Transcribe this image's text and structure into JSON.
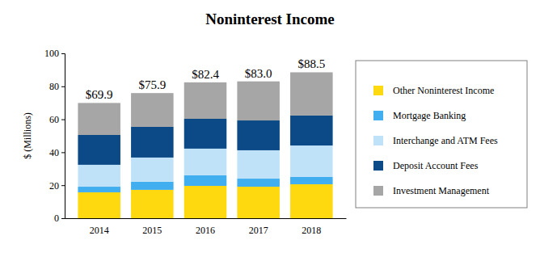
{
  "chart_data": {
    "type": "bar",
    "stacked": true,
    "title": "Noninterest Income",
    "y_label": "$ (Millions)",
    "categories": [
      "2014",
      "2015",
      "2016",
      "2017",
      "2018"
    ],
    "series": [
      {
        "name": "Other Noninterest Income",
        "color": "#ffd90f",
        "values": [
          15.7,
          17.2,
          19.6,
          19.1,
          20.6
        ]
      },
      {
        "name": "Mortgage Banking",
        "color": "#41aef0",
        "values": [
          3.4,
          4.9,
          6.4,
          4.9,
          4.4
        ]
      },
      {
        "name": "Interchange and ATM Fees",
        "color": "#c0e2f8",
        "values": [
          13.3,
          14.7,
          16.2,
          17.2,
          19.1
        ]
      },
      {
        "name": "Deposit Account Fees",
        "color": "#0b4a86",
        "values": [
          18.1,
          18.6,
          18.1,
          18.1,
          18.2
        ]
      },
      {
        "name": "Investment Management",
        "color": "#a6a6a6",
        "values": [
          19.4,
          20.5,
          22.1,
          23.7,
          26.2
        ]
      }
    ],
    "totals": [
      69.9,
      75.9,
      82.4,
      83.0,
      88.5
    ],
    "total_labels": [
      "$69.9",
      "$75.9",
      "$82.4",
      "$83.0",
      "$88.5"
    ],
    "ylim": [
      0,
      100
    ],
    "yticks": [
      0,
      20,
      40,
      60,
      80,
      100
    ],
    "grid": false,
    "legend": "right"
  }
}
